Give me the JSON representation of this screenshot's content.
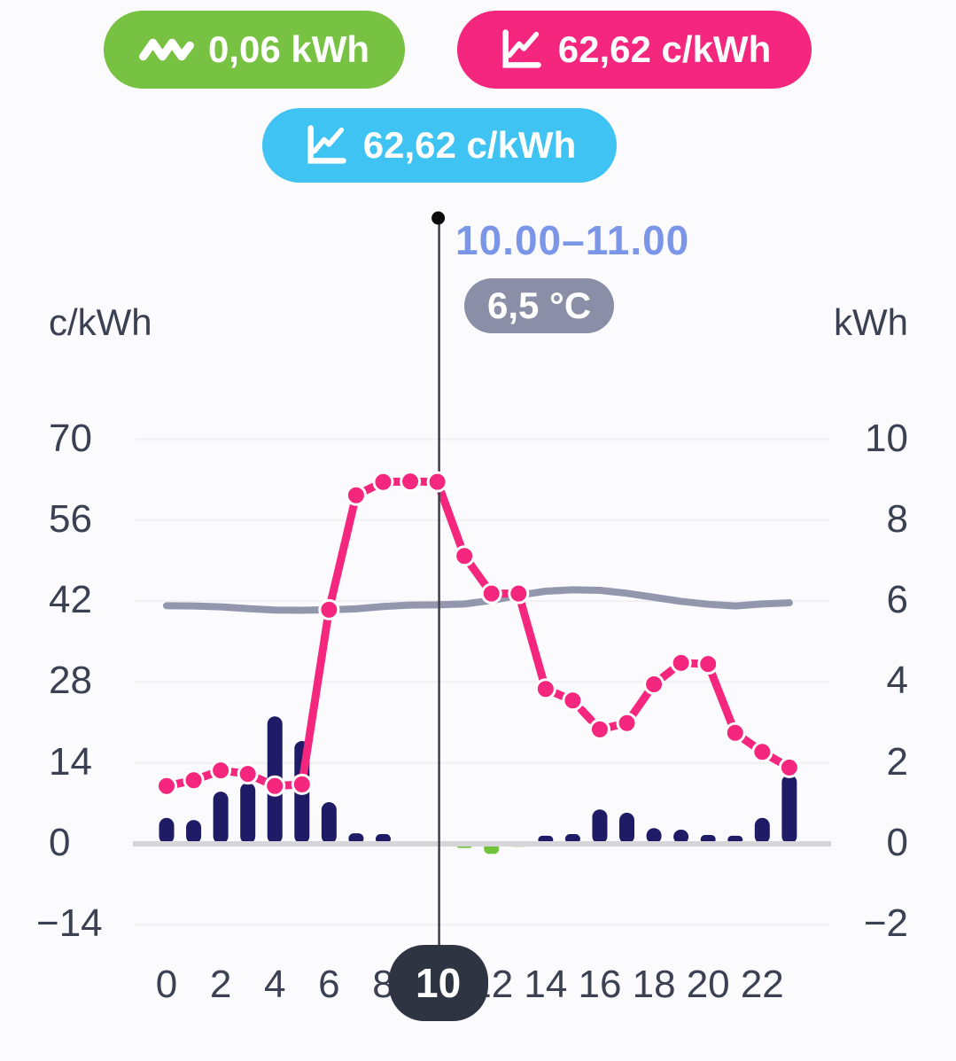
{
  "header_badges": {
    "consumption": {
      "value": "0,06 kWh",
      "color": "#77c242",
      "icon": "zigzag-consumption-icon"
    },
    "price_selected": {
      "value": "62,62 c/kWh",
      "color": "#f4267e",
      "icon": "line-chart-icon"
    },
    "price_secondary": {
      "value": "62,62 c/kWh",
      "color": "#3fc3f2",
      "icon": "line-chart-icon"
    }
  },
  "tooltip": {
    "time_range": "10.00–11.00",
    "temperature": "6,5 °C",
    "time_color": "#7b96e8",
    "pill_color": "#8a8ea6"
  },
  "chart_data": {
    "type": "composite",
    "x_hours": [
      0,
      1,
      2,
      3,
      4,
      5,
      6,
      7,
      8,
      9,
      10,
      11,
      12,
      13,
      14,
      15,
      16,
      17,
      18,
      19,
      20,
      21,
      22,
      23
    ],
    "x_tick_labels": [
      0,
      2,
      4,
      6,
      8,
      10,
      12,
      14,
      16,
      18,
      20,
      22
    ],
    "selected_hour": 10,
    "selected_hour_label": "10",
    "left_axis": {
      "title": "c/kWh",
      "ticks": [
        70,
        56,
        42,
        28,
        14,
        0,
        -14
      ],
      "range": [
        -14,
        70
      ]
    },
    "right_axis": {
      "title": "kWh",
      "ticks": [
        10,
        8,
        6,
        4,
        2,
        0,
        -2
      ],
      "range": [
        -2,
        10
      ]
    },
    "grid": true,
    "legend_position": "none",
    "series": [
      {
        "name": "electricity-price",
        "type": "line",
        "unit": "c/kWh",
        "axis": "left",
        "color": "#f4267e",
        "style": "dashed-with-dots",
        "values": [
          10.0,
          11.0,
          12.7,
          12.1,
          10.0,
          10.3,
          40.5,
          60.3,
          62.6,
          62.7,
          62.62,
          49.8,
          43.3,
          43.3,
          26.8,
          24.8,
          19.8,
          20.9,
          27.6,
          31.3,
          31.1,
          19.2,
          15.9,
          13.2
        ]
      },
      {
        "name": "temperature",
        "type": "line",
        "unit": "°C",
        "axis": "unlabeled (value shown in tooltip pill)",
        "color": "#9397ae",
        "style": "solid",
        "selected_value": "6,5 °C",
        "plotted_values_on_left_axis": [
          41.2,
          41.15,
          41.0,
          40.7,
          40.45,
          40.4,
          40.5,
          40.65,
          41.05,
          41.3,
          41.35,
          41.5,
          42.1,
          43.0,
          43.7,
          43.95,
          43.85,
          43.35,
          42.65,
          41.95,
          41.45,
          41.15,
          41.5,
          41.7
        ]
      },
      {
        "name": "consumption",
        "type": "bar",
        "unit": "kWh",
        "axis": "right",
        "color": "#1f1b66",
        "negative_color": "#72c43e",
        "values": [
          0.64,
          0.59,
          1.29,
          1.51,
          3.15,
          2.54,
          1.03,
          0.26,
          0.24,
          0,
          0.06,
          -0.1,
          -0.25,
          -0.07,
          0.2,
          0.24,
          0.85,
          0.77,
          0.39,
          0.35,
          0.22,
          0.2,
          0.64,
          1.71
        ]
      }
    ]
  }
}
